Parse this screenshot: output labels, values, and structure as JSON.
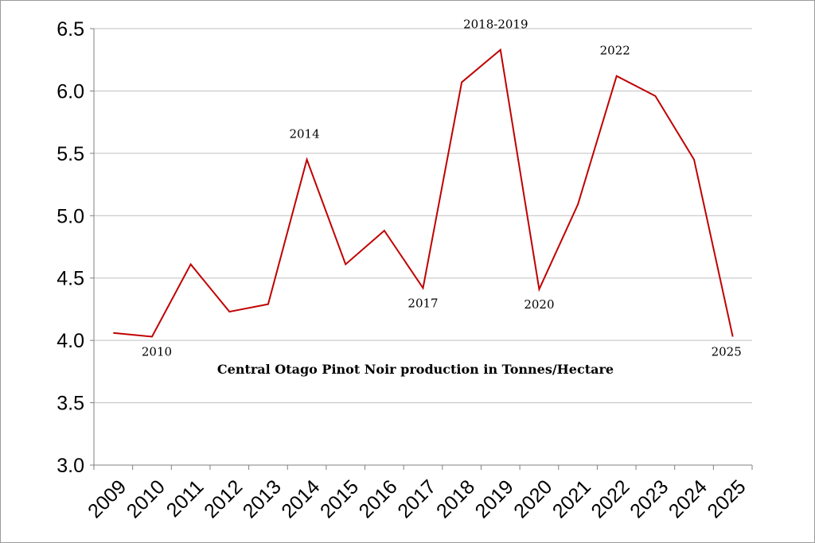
{
  "chart_data": {
    "type": "line",
    "title": "Central Otago Pinot Noir production in Tonnes/Hectare",
    "xlabel": "",
    "ylabel": "",
    "categories": [
      "2009",
      "2010",
      "2011",
      "2012",
      "2013",
      "2014",
      "2015",
      "2016",
      "2017",
      "2018",
      "2019",
      "2020",
      "2021",
      "2022",
      "2023",
      "2024",
      "2025"
    ],
    "series": [
      {
        "color": "#c00000",
        "values": [
          4.06,
          4.03,
          4.61,
          4.23,
          4.29,
          5.45,
          4.61,
          4.88,
          4.42,
          6.07,
          6.33,
          4.41,
          5.09,
          6.12,
          5.96,
          5.45,
          4.03
        ]
      }
    ],
    "ylim": [
      3.0,
      6.5
    ],
    "yticks": [
      "3.0",
      "3.5",
      "4.0",
      "4.5",
      "5.0",
      "5.5",
      "6.0",
      "6.5"
    ],
    "grid": true,
    "annotations": [
      {
        "text": "2010",
        "index": 1,
        "position": "below"
      },
      {
        "text": "2014",
        "index": 5,
        "position": "above"
      },
      {
        "text": "2017",
        "index": 8,
        "position": "below"
      },
      {
        "text": "2018-2019",
        "index": 10,
        "position": "above"
      },
      {
        "text": "2020",
        "index": 11,
        "position": "below"
      },
      {
        "text": "2022",
        "index": 13,
        "position": "above"
      },
      {
        "text": "2025",
        "index": 16,
        "position": "below"
      }
    ]
  }
}
